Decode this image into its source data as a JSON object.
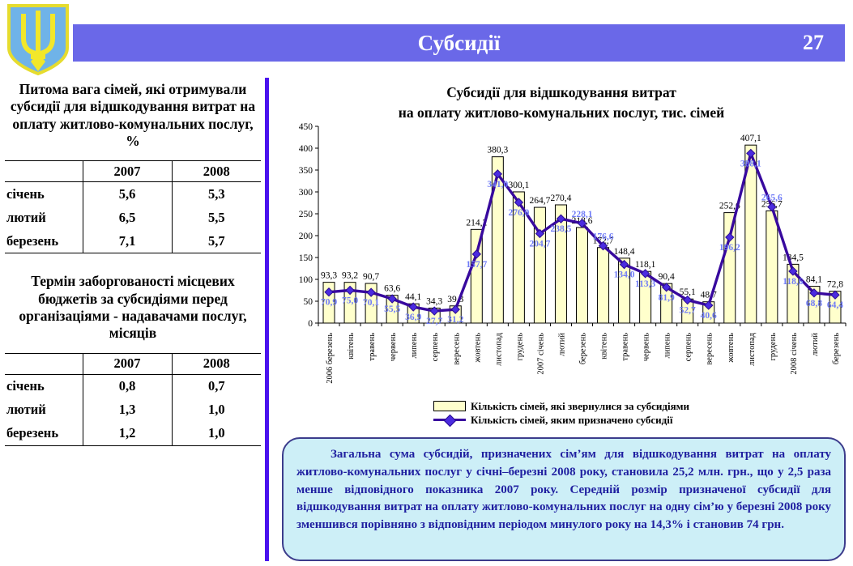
{
  "header": {
    "title": "Субсидії",
    "page_number": "27"
  },
  "left_panel": {
    "table1": {
      "title": "Питома вага сімей, які отримували субсидії для відшкодування витрат на оплату житлово-комунальних послуг, %",
      "col1": "2007",
      "col2": "2008",
      "rows": [
        {
          "label": "січень",
          "v2007": "5,6",
          "v2008": "5,3"
        },
        {
          "label": "лютий",
          "v2007": "6,5",
          "v2008": "5,5"
        },
        {
          "label": "березень",
          "v2007": "7,1",
          "v2008": "5,7"
        }
      ]
    },
    "table2": {
      "title": "Термін заборгованості місцевих бюджетів за субсидіями перед організаціями - надавачами послуг, місяців",
      "col1": "2007",
      "col2": "2008",
      "rows": [
        {
          "label": "січень",
          "v2007": "0,8",
          "v2008": "0,7"
        },
        {
          "label": "лютий",
          "v2007": "1,3",
          "v2008": "1,0"
        },
        {
          "label": "березень",
          "v2007": "1,2",
          "v2008": "1,0"
        }
      ]
    }
  },
  "chart_data": {
    "type": "bar",
    "combo": "bar+line",
    "title_line1": "Субсидії для відшкодування витрат",
    "title_line2": "на оплату житлово-комунальних послуг, тис. сімей",
    "categories": [
      "2006 березень",
      "квітень",
      "травень",
      "червень",
      "липень",
      "серпень",
      "вересень",
      "жовтень",
      "листопад",
      "грудень",
      "2007 січень",
      "лютий",
      "березень",
      "квітень",
      "травень",
      "червень",
      "липень",
      "серпень",
      "вересень",
      "жовтень",
      "листопад",
      "грудень",
      "2008 січень",
      "лютий",
      "березень"
    ],
    "series": [
      {
        "name": "Кількість сімей, які звернулися за субсидіями",
        "type": "bar",
        "color": "#FFFFCC",
        "values": [
          93.3,
          93.2,
          90.7,
          63.6,
          44.1,
          34.3,
          39.3,
          214.2,
          380.3,
          300.1,
          264.7,
          270.4,
          218.6,
          172.7,
          148.4,
          118.1,
          90.4,
          55.1,
          48.7,
          252.6,
          407.1,
          256.7,
          134.5,
          84.1,
          72.8
        ]
      },
      {
        "name": "Кількість сімей, яким призначено субсидії",
        "type": "line",
        "color": "#38099E",
        "values": [
          70.9,
          75.0,
          70.1,
          55.5,
          36.9,
          27.7,
          31.2,
          157.7,
          341.0,
          276.0,
          204.7,
          238.5,
          228.1,
          176.6,
          134.0,
          113.3,
          81.9,
          52.7,
          40.6,
          196.2,
          388.1,
          265.6,
          118.6,
          68.8,
          64.4
        ]
      }
    ],
    "ylim": [
      0,
      450
    ],
    "ytick_step": 50,
    "grid": false,
    "legend_position": "bottom"
  },
  "summary": {
    "text": "Загальна сума субсидій, призначених сім’ям для відшкодування витрат на оплату житлово-комунальних послуг у січні–березні 2008 року, становила 25,2 млн. грн., що у 2,5 раза менше відповідного показника 2007 року. Середній розмір призначеної субсидії для відшкодування витрат на оплату житлово-комунальних послуг на одну сім’ю у березні 2008 року зменшився  порівняно з відповідним періодом минулого року на 14,3%  і становив 74 грн."
  },
  "colors": {
    "header_bar": "#6A68E8",
    "divider": "#4A12EE",
    "bar_fill": "#FFFFCC",
    "line": "#38099E",
    "marker_fill": "#4B2BE0",
    "marker_stroke": "#2A0C90",
    "line_label": "#6F7BF7",
    "box_bg": "#CDEFF7",
    "box_border": "#3C3C8C",
    "box_text": "#1F1FA0",
    "shield_blue": "#6FB3E8",
    "trident_yellow": "#F2E72A"
  }
}
